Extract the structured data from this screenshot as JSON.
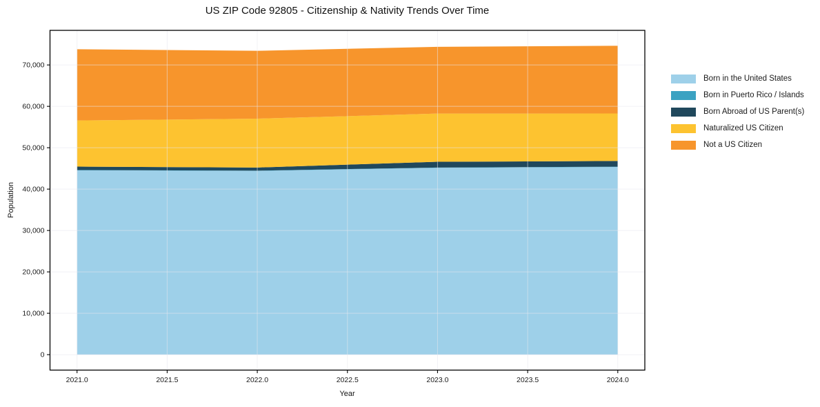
{
  "chart_data": {
    "type": "area",
    "stacked": true,
    "title": "US ZIP Code 92805 - Citizenship & Nativity Trends Over Time",
    "xlabel": "Year",
    "ylabel": "Population",
    "x": [
      2021,
      2022,
      2023,
      2024
    ],
    "series": [
      {
        "name": "Born in the United States",
        "color": "#9ed0e9",
        "values": [
          44550,
          44400,
          45150,
          45350
        ]
      },
      {
        "name": "Born in Puerto Rico / Islands",
        "color": "#3ba2c2",
        "values": [
          60,
          60,
          70,
          70
        ]
      },
      {
        "name": "Born Abroad of US Parent(s)",
        "color": "#20485c",
        "values": [
          830,
          760,
          1380,
          1370
        ]
      },
      {
        "name": "Naturalized US Citizen",
        "color": "#fdc330",
        "values": [
          11150,
          11800,
          11650,
          11480
        ]
      },
      {
        "name": "Not a US Citizen",
        "color": "#f7952c",
        "values": [
          17210,
          16400,
          16130,
          16360
        ]
      }
    ],
    "totals": [
      73800,
      73420,
      74380,
      74630
    ],
    "x_ticks": [
      2021.0,
      2021.5,
      2022.0,
      2022.5,
      2023.0,
      2023.5,
      2024.0
    ],
    "x_tick_labels": [
      "2021.0",
      "2021.5",
      "2022.0",
      "2022.5",
      "2023.0",
      "2023.5",
      "2024.0"
    ],
    "y_ticks": [
      0,
      10000,
      20000,
      30000,
      40000,
      50000,
      60000,
      70000
    ],
    "y_tick_labels": [
      "0",
      "10,000",
      "20,000",
      "30,000",
      "40,000",
      "50,000",
      "60,000",
      "70,000"
    ],
    "xlim": [
      2020.85,
      2024.15
    ],
    "ylim": [
      -3731,
      78361
    ],
    "grid": true,
    "legend_position": "right",
    "grid_color": "#e7e7ee",
    "spine_color": "#000000",
    "tick_text_color": "#1a1a1a"
  }
}
